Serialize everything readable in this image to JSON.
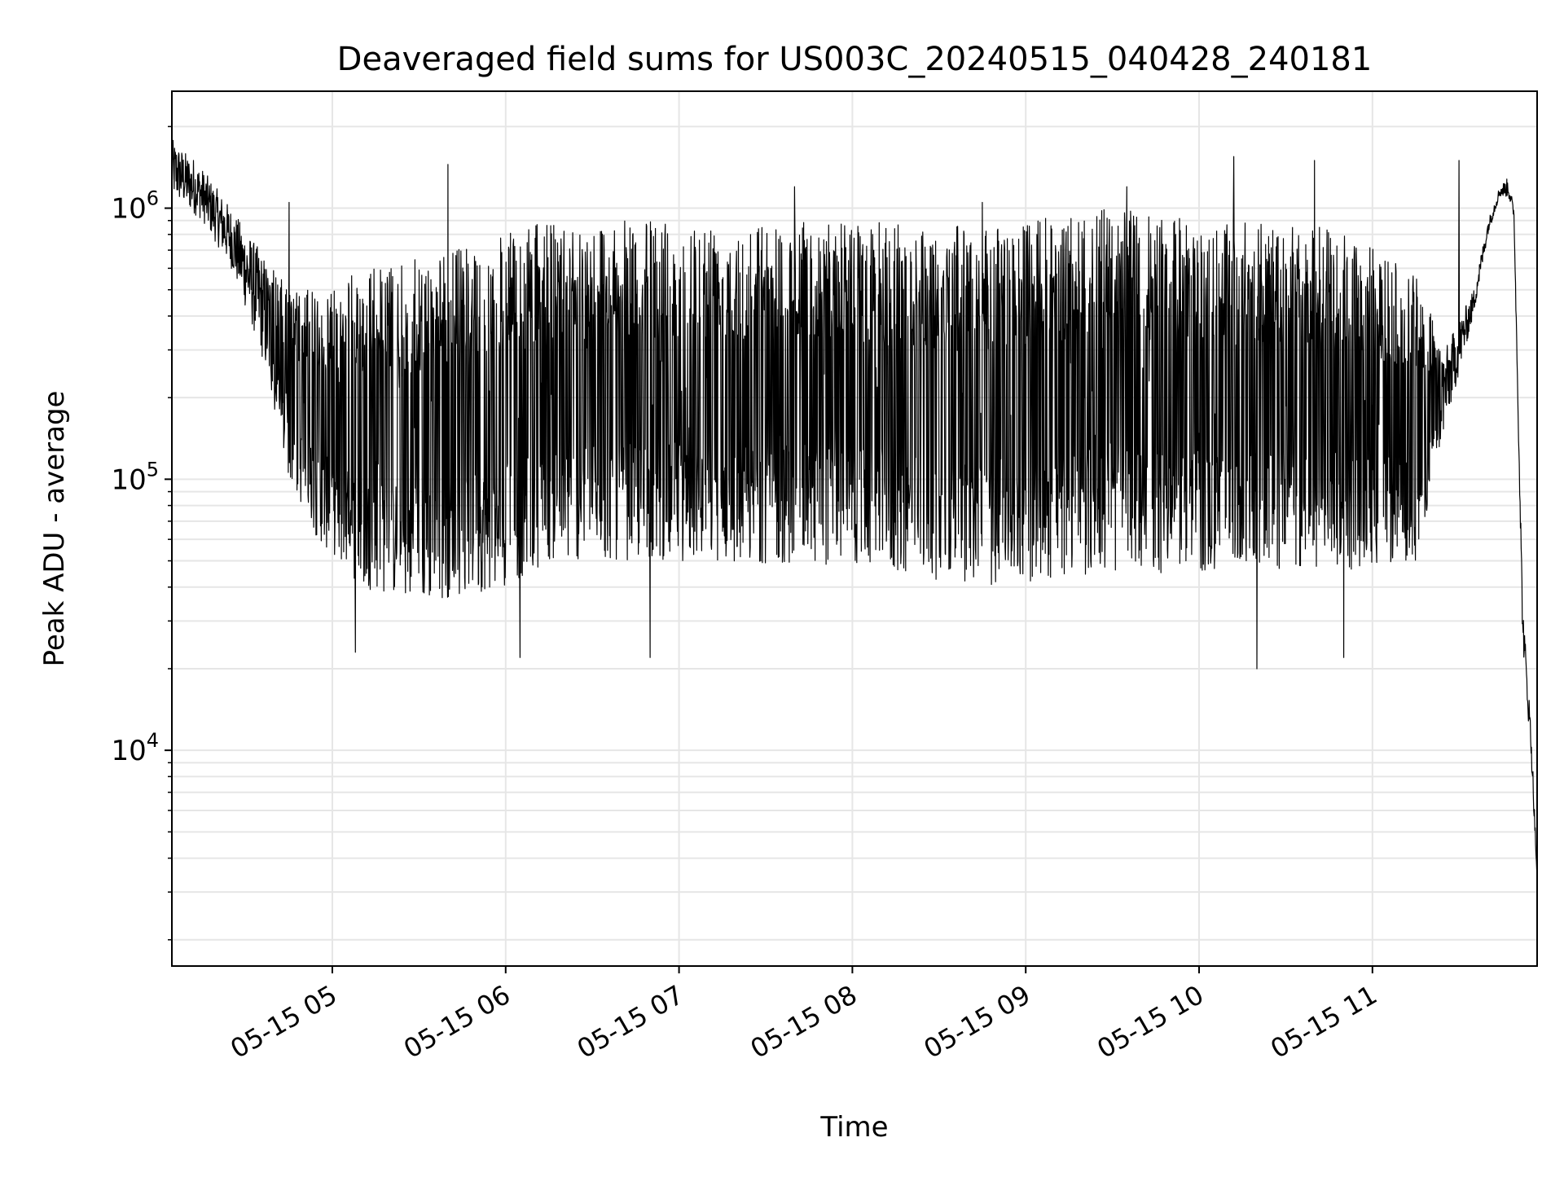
{
  "chart_data": {
    "type": "line",
    "title": "Deaveraged field sums for US003C_20240515_040428_240181",
    "xlabel": "Time",
    "ylabel": "Peak ADU - average",
    "yscale": "log",
    "grid": true,
    "legend": "none",
    "line_color": "#000000",
    "grid_color": "#e6e6e6",
    "xlim": [
      "2024-05-15 04:04:28",
      "2024-05-15 11:57:00"
    ],
    "ylim": [
      1600,
      2700000
    ],
    "x_ticks": [
      {
        "value": "2024-05-15 05:00",
        "label": "05-15 05"
      },
      {
        "value": "2024-05-15 06:00",
        "label": "05-15 06"
      },
      {
        "value": "2024-05-15 07:00",
        "label": "05-15 07"
      },
      {
        "value": "2024-05-15 08:00",
        "label": "05-15 08"
      },
      {
        "value": "2024-05-15 09:00",
        "label": "05-15 09"
      },
      {
        "value": "2024-05-15 10:00",
        "label": "05-15 10"
      },
      {
        "value": "2024-05-15 11:00",
        "label": "05-15 11"
      }
    ],
    "y_ticks": [
      {
        "value": 10000,
        "base": "10",
        "exp": "4"
      },
      {
        "value": 100000,
        "base": "10",
        "exp": "5"
      },
      {
        "value": 1000000,
        "base": "10",
        "exp": "6"
      }
    ],
    "envelope": {
      "x": [
        "2024-05-15 04:04:28",
        "2024-05-15 04:15",
        "2024-05-15 04:25",
        "2024-05-15 04:35",
        "2024-05-15 04:45",
        "2024-05-15 04:55",
        "2024-05-15 05:10",
        "2024-05-15 05:30",
        "2024-05-15 06:00",
        "2024-05-15 06:15",
        "2024-05-15 07:00",
        "2024-05-15 08:00",
        "2024-05-15 08:45",
        "2024-05-15 09:30",
        "2024-05-15 10:00",
        "2024-05-15 10:45",
        "2024-05-15 11:15",
        "2024-05-15 11:25",
        "2024-05-15 11:35",
        "2024-05-15 11:40",
        "2024-05-15 11:44",
        "2024-05-15 11:47",
        "2024-05-15 11:49",
        "2024-05-15 11:52",
        "2024-05-15 11:55",
        "2024-05-15 11:57"
      ],
      "high": [
        1800000,
        1400000,
        1000000,
        700000,
        500000,
        500000,
        600000,
        650000,
        800000,
        900000,
        900000,
        900000,
        850000,
        1000000,
        900000,
        850000,
        600000,
        300000,
        500000,
        900000,
        1200000,
        1300000,
        1000000,
        35000,
        12000,
        3500
      ],
      "low": [
        1100000,
        900000,
        600000,
        300000,
        100000,
        60000,
        40000,
        35000,
        40000,
        50000,
        50000,
        48000,
        40000,
        45000,
        45000,
        45000,
        50000,
        150000,
        400000,
        800000,
        1100000,
        1100000,
        900000,
        25000,
        9000,
        3300
      ]
    },
    "spikes": [
      {
        "x": "2024-05-15 04:12",
        "y": 1500000
      },
      {
        "x": "2024-05-15 04:45",
        "y": 1050000
      },
      {
        "x": "2024-05-15 05:08",
        "y": 23000
      },
      {
        "x": "2024-05-15 05:40",
        "y": 1450000
      },
      {
        "x": "2024-05-15 06:05",
        "y": 22000
      },
      {
        "x": "2024-05-15 06:50",
        "y": 22000
      },
      {
        "x": "2024-05-15 07:40",
        "y": 1200000
      },
      {
        "x": "2024-05-15 08:45",
        "y": 1050000
      },
      {
        "x": "2024-05-15 09:35",
        "y": 1200000
      },
      {
        "x": "2024-05-15 10:12",
        "y": 1550000
      },
      {
        "x": "2024-05-15 10:20",
        "y": 20000
      },
      {
        "x": "2024-05-15 10:40",
        "y": 1500000
      },
      {
        "x": "2024-05-15 10:50",
        "y": 22000
      },
      {
        "x": "2024-05-15 11:30",
        "y": 1500000
      }
    ]
  }
}
